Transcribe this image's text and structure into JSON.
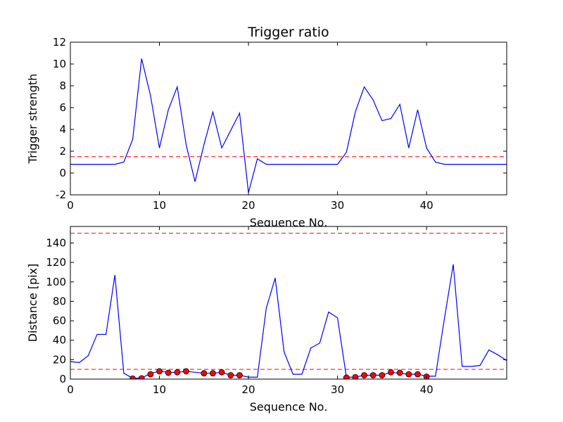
{
  "figure": {
    "background": "#ffffff"
  },
  "chart_data": [
    {
      "type": "line",
      "title": "Trigger ratio",
      "xlabel": "Sequence No.",
      "ylabel": "Trigger strength",
      "xlim": [
        0,
        49
      ],
      "ylim": [
        -2,
        12
      ],
      "xticks": [
        0,
        10,
        20,
        30,
        40
      ],
      "yticks": [
        -2,
        0,
        2,
        4,
        6,
        8,
        10,
        12
      ],
      "grid": false,
      "series": [
        {
          "color": "#0000ff",
          "style": "solid",
          "x": [
            0,
            1,
            2,
            3,
            4,
            5,
            6,
            7,
            8,
            9,
            10,
            11,
            12,
            13,
            14,
            15,
            16,
            17,
            18,
            19,
            20,
            21,
            22,
            23,
            24,
            25,
            26,
            27,
            28,
            29,
            30,
            31,
            32,
            33,
            34,
            35,
            36,
            37,
            38,
            39,
            40,
            41,
            42,
            43,
            44,
            45,
            46,
            47,
            48,
            49
          ],
          "y": [
            0.8,
            0.8,
            0.8,
            0.8,
            0.8,
            0.8,
            1.0,
            3.1,
            10.5,
            7.1,
            2.3,
            5.8,
            7.9,
            2.6,
            -0.8,
            2.6,
            5.6,
            2.3,
            3.9,
            5.5,
            -1.8,
            1.3,
            0.8,
            0.8,
            0.8,
            0.8,
            0.8,
            0.8,
            0.8,
            0.8,
            0.8,
            1.9,
            5.6,
            7.9,
            6.7,
            4.8,
            5.0,
            6.3,
            2.3,
            5.8,
            2.3,
            1.0,
            0.8,
            0.8,
            0.8,
            0.8,
            0.8,
            0.8,
            0.8,
            0.8
          ]
        }
      ],
      "hlines": [
        {
          "y": 1.5,
          "color": "#ff0000",
          "style": "dashed"
        }
      ]
    },
    {
      "type": "line",
      "xlabel": "Sequence No.",
      "ylabel": "Distance [pix]",
      "xlim": [
        0,
        49
      ],
      "ylim": [
        0,
        157
      ],
      "xticks": [
        0,
        10,
        20,
        30,
        40
      ],
      "yticks": [
        0,
        20,
        40,
        60,
        80,
        100,
        120,
        140
      ],
      "grid": false,
      "series": [
        {
          "color": "#0000ff",
          "style": "solid",
          "x": [
            0,
            1,
            2,
            3,
            4,
            5,
            6,
            7,
            8,
            9,
            10,
            11,
            12,
            13,
            14,
            15,
            16,
            17,
            18,
            19,
            20,
            21,
            22,
            23,
            24,
            25,
            26,
            27,
            28,
            29,
            30,
            31,
            32,
            33,
            34,
            35,
            36,
            37,
            38,
            39,
            40,
            41,
            42,
            43,
            44,
            45,
            46,
            47,
            48,
            49
          ],
          "y": [
            18,
            17,
            24,
            46,
            46,
            107,
            6,
            1,
            1,
            6,
            8,
            7,
            7,
            8,
            7,
            6,
            6,
            7,
            4,
            4,
            2,
            2,
            73,
            104,
            28,
            5,
            5,
            32,
            37,
            69,
            63,
            2,
            2,
            4,
            4,
            4,
            7,
            6,
            5,
            5,
            3,
            3,
            62,
            118,
            13,
            13,
            14,
            30,
            25,
            19
          ]
        },
        {
          "type": "scatter",
          "color": "#ff0000",
          "marker": "circle",
          "x": [
            7,
            8,
            9,
            10,
            11,
            12,
            13,
            15,
            16,
            17,
            18,
            19,
            31,
            32,
            33,
            34,
            35,
            36,
            37,
            38,
            39,
            40
          ],
          "y": [
            0.5,
            0.8,
            5,
            8,
            6.5,
            7,
            8,
            6,
            6,
            7,
            4,
            4,
            1.5,
            2,
            4,
            4,
            4,
            7,
            6.5,
            5,
            5,
            2.5
          ]
        }
      ],
      "hlines": [
        {
          "y": 10,
          "color": "#ff0000",
          "style": "dashed"
        },
        {
          "y": 150,
          "color": "#ff0000",
          "style": "dashed"
        }
      ]
    }
  ]
}
